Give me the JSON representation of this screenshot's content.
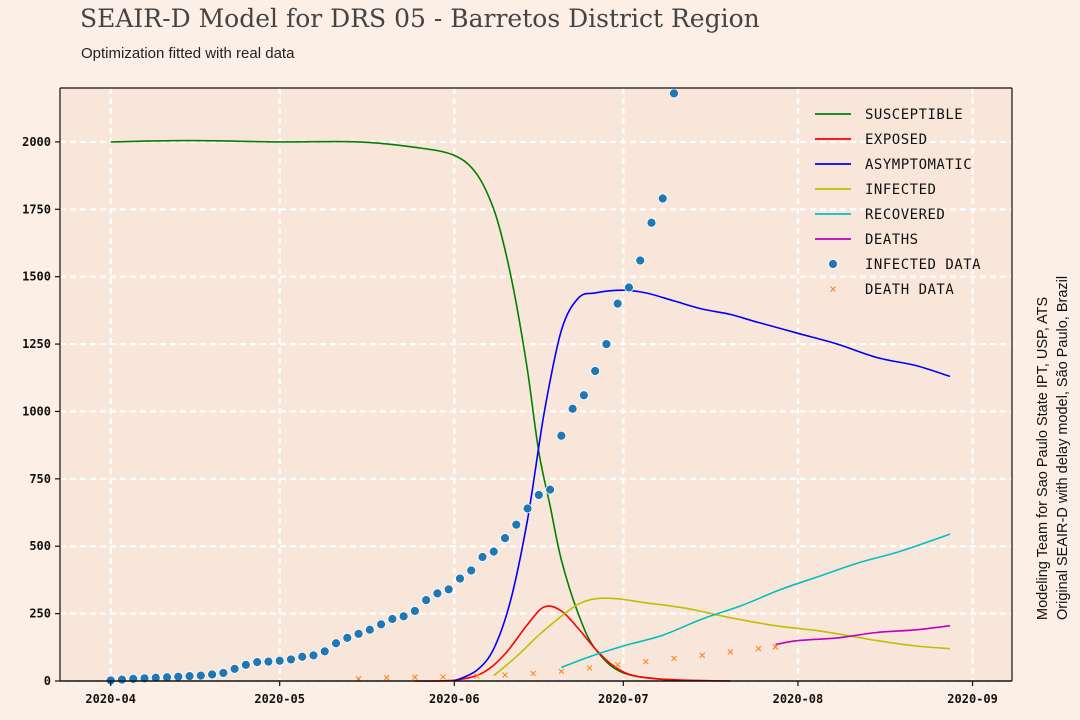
{
  "header": {
    "title": "SEAIR-D Model for DRS 05 - Barretos District Region",
    "subtitle": "Optimization fitted with real data"
  },
  "side_note": {
    "line1": "Modeling Team for Sao Paulo State IPT, USP, ATS",
    "line2": "Original SEAIR-D with delay model, São Paulo, Brazil"
  },
  "colors": {
    "background": "#fcefe5",
    "plot_background": "#f9e6da",
    "grid": "#ffffff"
  },
  "chart_data": {
    "type": "line",
    "title": "SEAIR-D Model for DRS 05 - Barretos District Region",
    "subtitle": "Optimization fitted with real data",
    "xlabel": "",
    "ylabel": "",
    "x_ticks": [
      "2020-04",
      "2020-05",
      "2020-06",
      "2020-07",
      "2020-08",
      "2020-09"
    ],
    "y_ticks": [
      0,
      250,
      500,
      750,
      1000,
      1250,
      1500,
      1750,
      2000
    ],
    "xlim": [
      "2020-03-23",
      "2020-09-08"
    ],
    "ylim": [
      0,
      2200
    ],
    "grid": true,
    "legend_position": "top-right",
    "series": [
      {
        "name": "SUSCEPTIBLE",
        "kind": "line",
        "color": "#008000",
        "x": [
          "2020-04-01",
          "2020-04-15",
          "2020-05-01",
          "2020-05-15",
          "2020-05-25",
          "2020-06-01",
          "2020-06-05",
          "2020-06-08",
          "2020-06-10",
          "2020-06-12",
          "2020-06-14",
          "2020-06-16",
          "2020-06-18",
          "2020-06-20",
          "2020-06-23",
          "2020-06-26",
          "2020-07-01",
          "2020-07-10"
        ],
        "y": [
          2000,
          2005,
          2000,
          2000,
          1980,
          1950,
          1880,
          1750,
          1600,
          1400,
          1150,
          850,
          650,
          450,
          250,
          120,
          30,
          2
        ]
      },
      {
        "name": "EXPOSED",
        "kind": "line",
        "color": "#ff0000",
        "x": [
          "2020-05-25",
          "2020-06-01",
          "2020-06-06",
          "2020-06-10",
          "2020-06-14",
          "2020-06-17",
          "2020-06-20",
          "2020-06-23",
          "2020-06-26",
          "2020-06-29",
          "2020-07-02",
          "2020-07-06",
          "2020-07-12",
          "2020-07-20"
        ],
        "y": [
          0,
          3,
          30,
          100,
          210,
          275,
          260,
          195,
          120,
          60,
          25,
          10,
          3,
          0
        ]
      },
      {
        "name": "ASYMPTOMATIC",
        "kind": "line",
        "color": "#0000ff",
        "x": [
          "2020-06-01",
          "2020-06-05",
          "2020-06-08",
          "2020-06-11",
          "2020-06-14",
          "2020-06-17",
          "2020-06-20",
          "2020-06-23",
          "2020-06-26",
          "2020-07-01",
          "2020-07-05",
          "2020-07-10",
          "2020-07-15",
          "2020-07-20",
          "2020-07-25",
          "2020-08-01",
          "2020-08-08",
          "2020-08-15",
          "2020-08-22",
          "2020-08-28"
        ],
        "y": [
          0,
          40,
          120,
          300,
          600,
          1000,
          1300,
          1420,
          1440,
          1450,
          1440,
          1410,
          1380,
          1360,
          1330,
          1290,
          1250,
          1200,
          1170,
          1130
        ]
      },
      {
        "name": "INFECTED",
        "kind": "line",
        "color": "#bfbf00",
        "x": [
          "2020-06-08",
          "2020-06-12",
          "2020-06-16",
          "2020-06-20",
          "2020-06-23",
          "2020-06-26",
          "2020-06-30",
          "2020-07-05",
          "2020-07-12",
          "2020-07-20",
          "2020-07-28",
          "2020-08-05",
          "2020-08-15",
          "2020-08-22",
          "2020-08-28"
        ],
        "y": [
          20,
          90,
          170,
          240,
          285,
          305,
          305,
          290,
          270,
          235,
          205,
          185,
          150,
          130,
          120
        ]
      },
      {
        "name": "RECOVERED",
        "kind": "line",
        "color": "#00bfbf",
        "x": [
          "2020-06-20",
          "2020-06-25",
          "2020-07-01",
          "2020-07-08",
          "2020-07-15",
          "2020-07-22",
          "2020-07-29",
          "2020-08-05",
          "2020-08-12",
          "2020-08-19",
          "2020-08-28"
        ],
        "y": [
          50,
          90,
          130,
          170,
          230,
          280,
          340,
          390,
          440,
          480,
          545
        ]
      },
      {
        "name": "DEATHS",
        "kind": "line",
        "color": "#bf00bf",
        "x": [
          "2020-07-28",
          "2020-08-01",
          "2020-08-08",
          "2020-08-15",
          "2020-08-22",
          "2020-08-28"
        ],
        "y": [
          135,
          150,
          160,
          180,
          190,
          205
        ]
      },
      {
        "name": "INFECTED DATA",
        "kind": "scatter",
        "marker": "dot",
        "color": "#1f77b4",
        "x": [
          "2020-04-01",
          "2020-04-03",
          "2020-04-05",
          "2020-04-07",
          "2020-04-09",
          "2020-04-11",
          "2020-04-13",
          "2020-04-15",
          "2020-04-17",
          "2020-04-19",
          "2020-04-21",
          "2020-04-23",
          "2020-04-25",
          "2020-04-27",
          "2020-04-29",
          "2020-05-01",
          "2020-05-03",
          "2020-05-05",
          "2020-05-07",
          "2020-05-09",
          "2020-05-11",
          "2020-05-13",
          "2020-05-15",
          "2020-05-17",
          "2020-05-19",
          "2020-05-21",
          "2020-05-23",
          "2020-05-25",
          "2020-05-27",
          "2020-05-29",
          "2020-05-31",
          "2020-06-02",
          "2020-06-04",
          "2020-06-06",
          "2020-06-08",
          "2020-06-10",
          "2020-06-12",
          "2020-06-14",
          "2020-06-16",
          "2020-06-18",
          "2020-06-20",
          "2020-06-22",
          "2020-06-24",
          "2020-06-26",
          "2020-06-28",
          "2020-06-30",
          "2020-07-02",
          "2020-07-04",
          "2020-07-06",
          "2020-07-08",
          "2020-07-10"
        ],
        "y": [
          2,
          5,
          8,
          10,
          12,
          14,
          16,
          18,
          20,
          24,
          30,
          45,
          60,
          70,
          72,
          75,
          80,
          90,
          95,
          110,
          140,
          160,
          175,
          190,
          210,
          230,
          240,
          260,
          300,
          325,
          340,
          380,
          410,
          460,
          480,
          530,
          580,
          640,
          690,
          710,
          910,
          1010,
          1060,
          1150,
          1250,
          1400,
          1460,
          1560,
          1700,
          1790,
          2180
        ]
      },
      {
        "name": "DEATH DATA",
        "kind": "scatter",
        "marker": "x",
        "color": "#ff7f0e",
        "x": [
          "2020-05-15",
          "2020-05-20",
          "2020-05-25",
          "2020-05-30",
          "2020-06-05",
          "2020-06-10",
          "2020-06-15",
          "2020-06-20",
          "2020-06-25",
          "2020-06-30",
          "2020-07-05",
          "2020-07-10",
          "2020-07-15",
          "2020-07-20",
          "2020-07-25",
          "2020-07-28"
        ],
        "y": [
          8,
          12,
          14,
          15,
          18,
          22,
          28,
          36,
          48,
          60,
          72,
          84,
          95,
          108,
          120,
          126
        ]
      }
    ]
  }
}
